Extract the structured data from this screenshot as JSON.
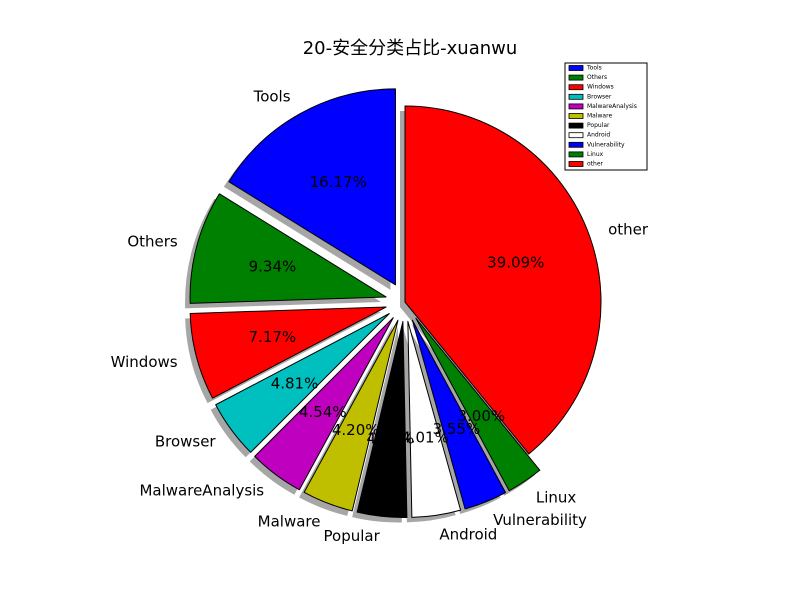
{
  "chart_data": {
    "type": "pie",
    "title": "20-安全分类占比-xuanwu",
    "legend_position": "top-right",
    "slices": [
      {
        "label": "Tools",
        "value": 16.17,
        "pct_label": "16.17%",
        "color": "#0000ff",
        "explode": 0.1
      },
      {
        "label": "Others",
        "value": 9.34,
        "pct_label": "9.34%",
        "color": "#008000",
        "explode": 0.1
      },
      {
        "label": "Windows",
        "value": 7.17,
        "pct_label": "7.17%",
        "color": "#ff0000",
        "explode": 0.1
      },
      {
        "label": "Browser",
        "value": 4.81,
        "pct_label": "4.81%",
        "color": "#00bfbf",
        "explode": 0.1
      },
      {
        "label": "MalwareAnalysis",
        "value": 4.54,
        "pct_label": "4.54%",
        "color": "#bf00bf",
        "explode": 0.1
      },
      {
        "label": "Malware",
        "value": 4.2,
        "pct_label": "4.20%",
        "color": "#bfbf00",
        "explode": 0.1
      },
      {
        "label": "Popular",
        "value": 4.07,
        "pct_label": "4.07%",
        "color": "#000000",
        "explode": 0.1
      },
      {
        "label": "Android",
        "value": 4.01,
        "pct_label": "4.01%",
        "color": "#ffffff",
        "explode": 0.1
      },
      {
        "label": "Vulnerability",
        "value": 3.55,
        "pct_label": "3.55%",
        "color": "#0000ff",
        "explode": 0.1
      },
      {
        "label": "Linux",
        "value": 3.0,
        "pct_label": "3.00%",
        "color": "#008000",
        "explode": 0.1
      },
      {
        "label": "other",
        "value": 39.09,
        "pct_label": "39.09%",
        "color": "#ff0000",
        "explode": 0.0
      }
    ]
  }
}
